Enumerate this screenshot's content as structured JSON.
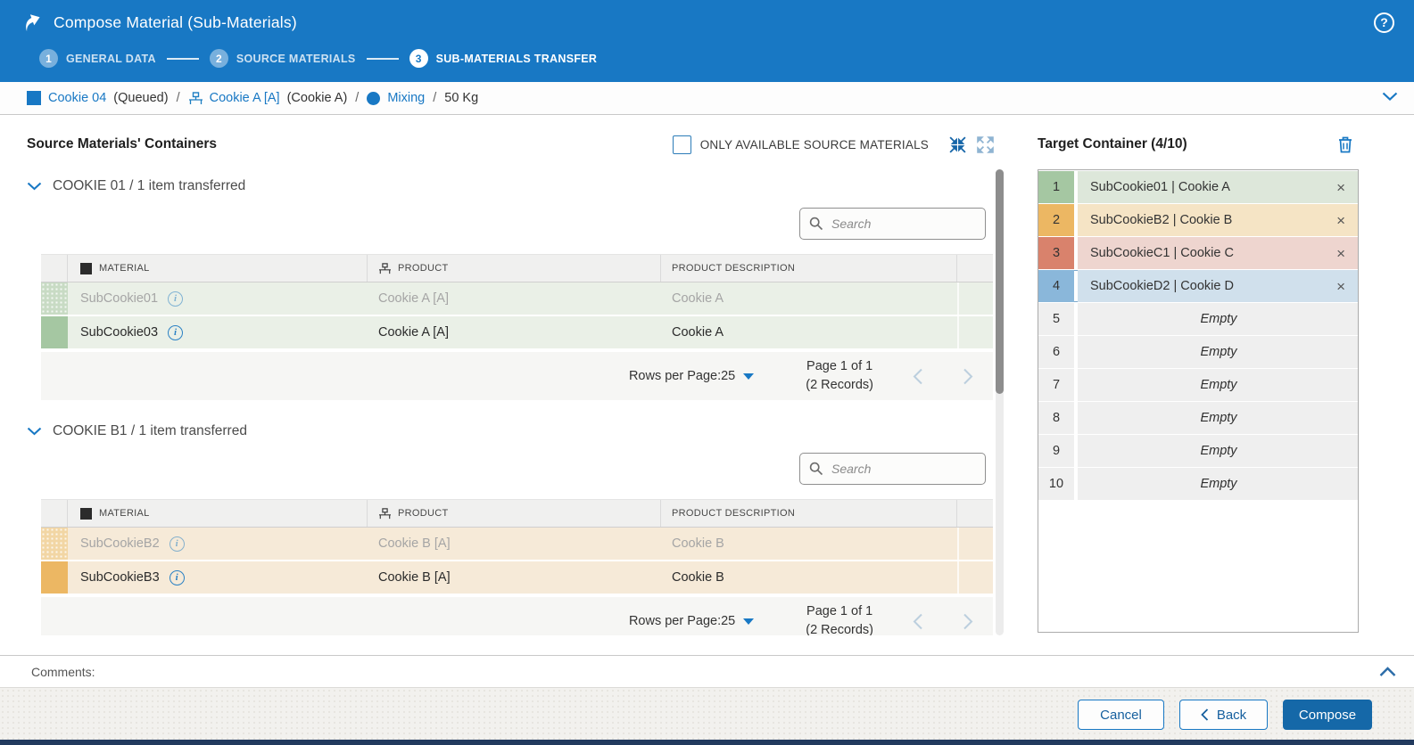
{
  "colors": {
    "header_blue": "#1878c4",
    "compose_button": "#1568a8",
    "slot_green": "#a5c7a2",
    "slot_orange": "#ecb763",
    "slot_red": "#d9826c",
    "slot_blue": "#8ab7da",
    "row_green_tint": "#eaf0e7",
    "row_orange_tint": "#f6ead8"
  },
  "titlebar": {
    "title": "Compose Material (Sub-Materials)",
    "help_glyph": "?"
  },
  "stepper": [
    {
      "num": "1",
      "label": "GENERAL DATA",
      "state": "inactive"
    },
    {
      "num": "2",
      "label": "SOURCE MATERIALS",
      "state": "inactive"
    },
    {
      "num": "3",
      "label": "SUB-MATERIALS TRANSFER",
      "state": "active"
    }
  ],
  "breadcrumb": {
    "material": "Cookie 04",
    "material_status": "(Queued)",
    "sep1": "/",
    "product": "Cookie A [A]",
    "product_desc": "(Cookie A)",
    "sep2": "/",
    "operation": "Mixing",
    "sep3": "/",
    "quantity": "50 Kg"
  },
  "source_panel": {
    "title": "Source Materials' Containers",
    "filter_label": "ONLY AVAILABLE SOURCE MATERIALS",
    "search_placeholder": "Search",
    "info_glyph": "i",
    "columns": {
      "material": "MATERIAL",
      "product": "PRODUCT",
      "description": "PRODUCT DESCRIPTION"
    },
    "sections": [
      {
        "title": "COOKIE 01 / 1 item transferred",
        "theme": "green",
        "rows": [
          {
            "material": "SubCookie01",
            "product": "Cookie A [A]",
            "description": "Cookie A",
            "transferred": true
          },
          {
            "material": "SubCookie03",
            "product": "Cookie A [A]",
            "description": "Cookie A",
            "transferred": false
          }
        ],
        "pagination": {
          "rows_label": "Rows per Page:",
          "rows_value": "25",
          "page": "Page 1 of 1",
          "records": "(2 Records)"
        }
      },
      {
        "title": "COOKIE B1 / 1 item transferred",
        "theme": "orange",
        "rows": [
          {
            "material": "SubCookieB2",
            "product": "Cookie B [A]",
            "description": "Cookie B",
            "transferred": true
          },
          {
            "material": "SubCookieB3",
            "product": "Cookie B [A]",
            "description": "Cookie B",
            "transferred": false
          }
        ],
        "pagination": {
          "rows_label": "Rows per Page:",
          "rows_value": "25",
          "page": "Page 1 of 1",
          "records": "(2 Records)"
        }
      }
    ]
  },
  "target_panel": {
    "title": "Target Container (4/10)",
    "empty_label": "Empty",
    "close_glyph": "×",
    "slots": [
      {
        "num": "1",
        "label": "SubCookie01 | Cookie A",
        "theme": "green",
        "selected": false
      },
      {
        "num": "2",
        "label": "SubCookieB2 | Cookie B",
        "theme": "orange",
        "selected": false
      },
      {
        "num": "3",
        "label": "SubCookieC1 | Cookie C",
        "theme": "red",
        "selected": false
      },
      {
        "num": "4",
        "label": "SubCookieD2 | Cookie D",
        "theme": "blue",
        "selected": true
      },
      {
        "num": "5",
        "label": "",
        "theme": "empty",
        "selected": false
      },
      {
        "num": "6",
        "label": "",
        "theme": "empty",
        "selected": false
      },
      {
        "num": "7",
        "label": "",
        "theme": "empty",
        "selected": false
      },
      {
        "num": "8",
        "label": "",
        "theme": "empty",
        "selected": false
      },
      {
        "num": "9",
        "label": "",
        "theme": "empty",
        "selected": false
      },
      {
        "num": "10",
        "label": "",
        "theme": "empty",
        "selected": false
      }
    ]
  },
  "comments_label": "Comments:",
  "footer": {
    "cancel_label": "Cancel",
    "back_label": "Back",
    "compose_label": "Compose"
  }
}
